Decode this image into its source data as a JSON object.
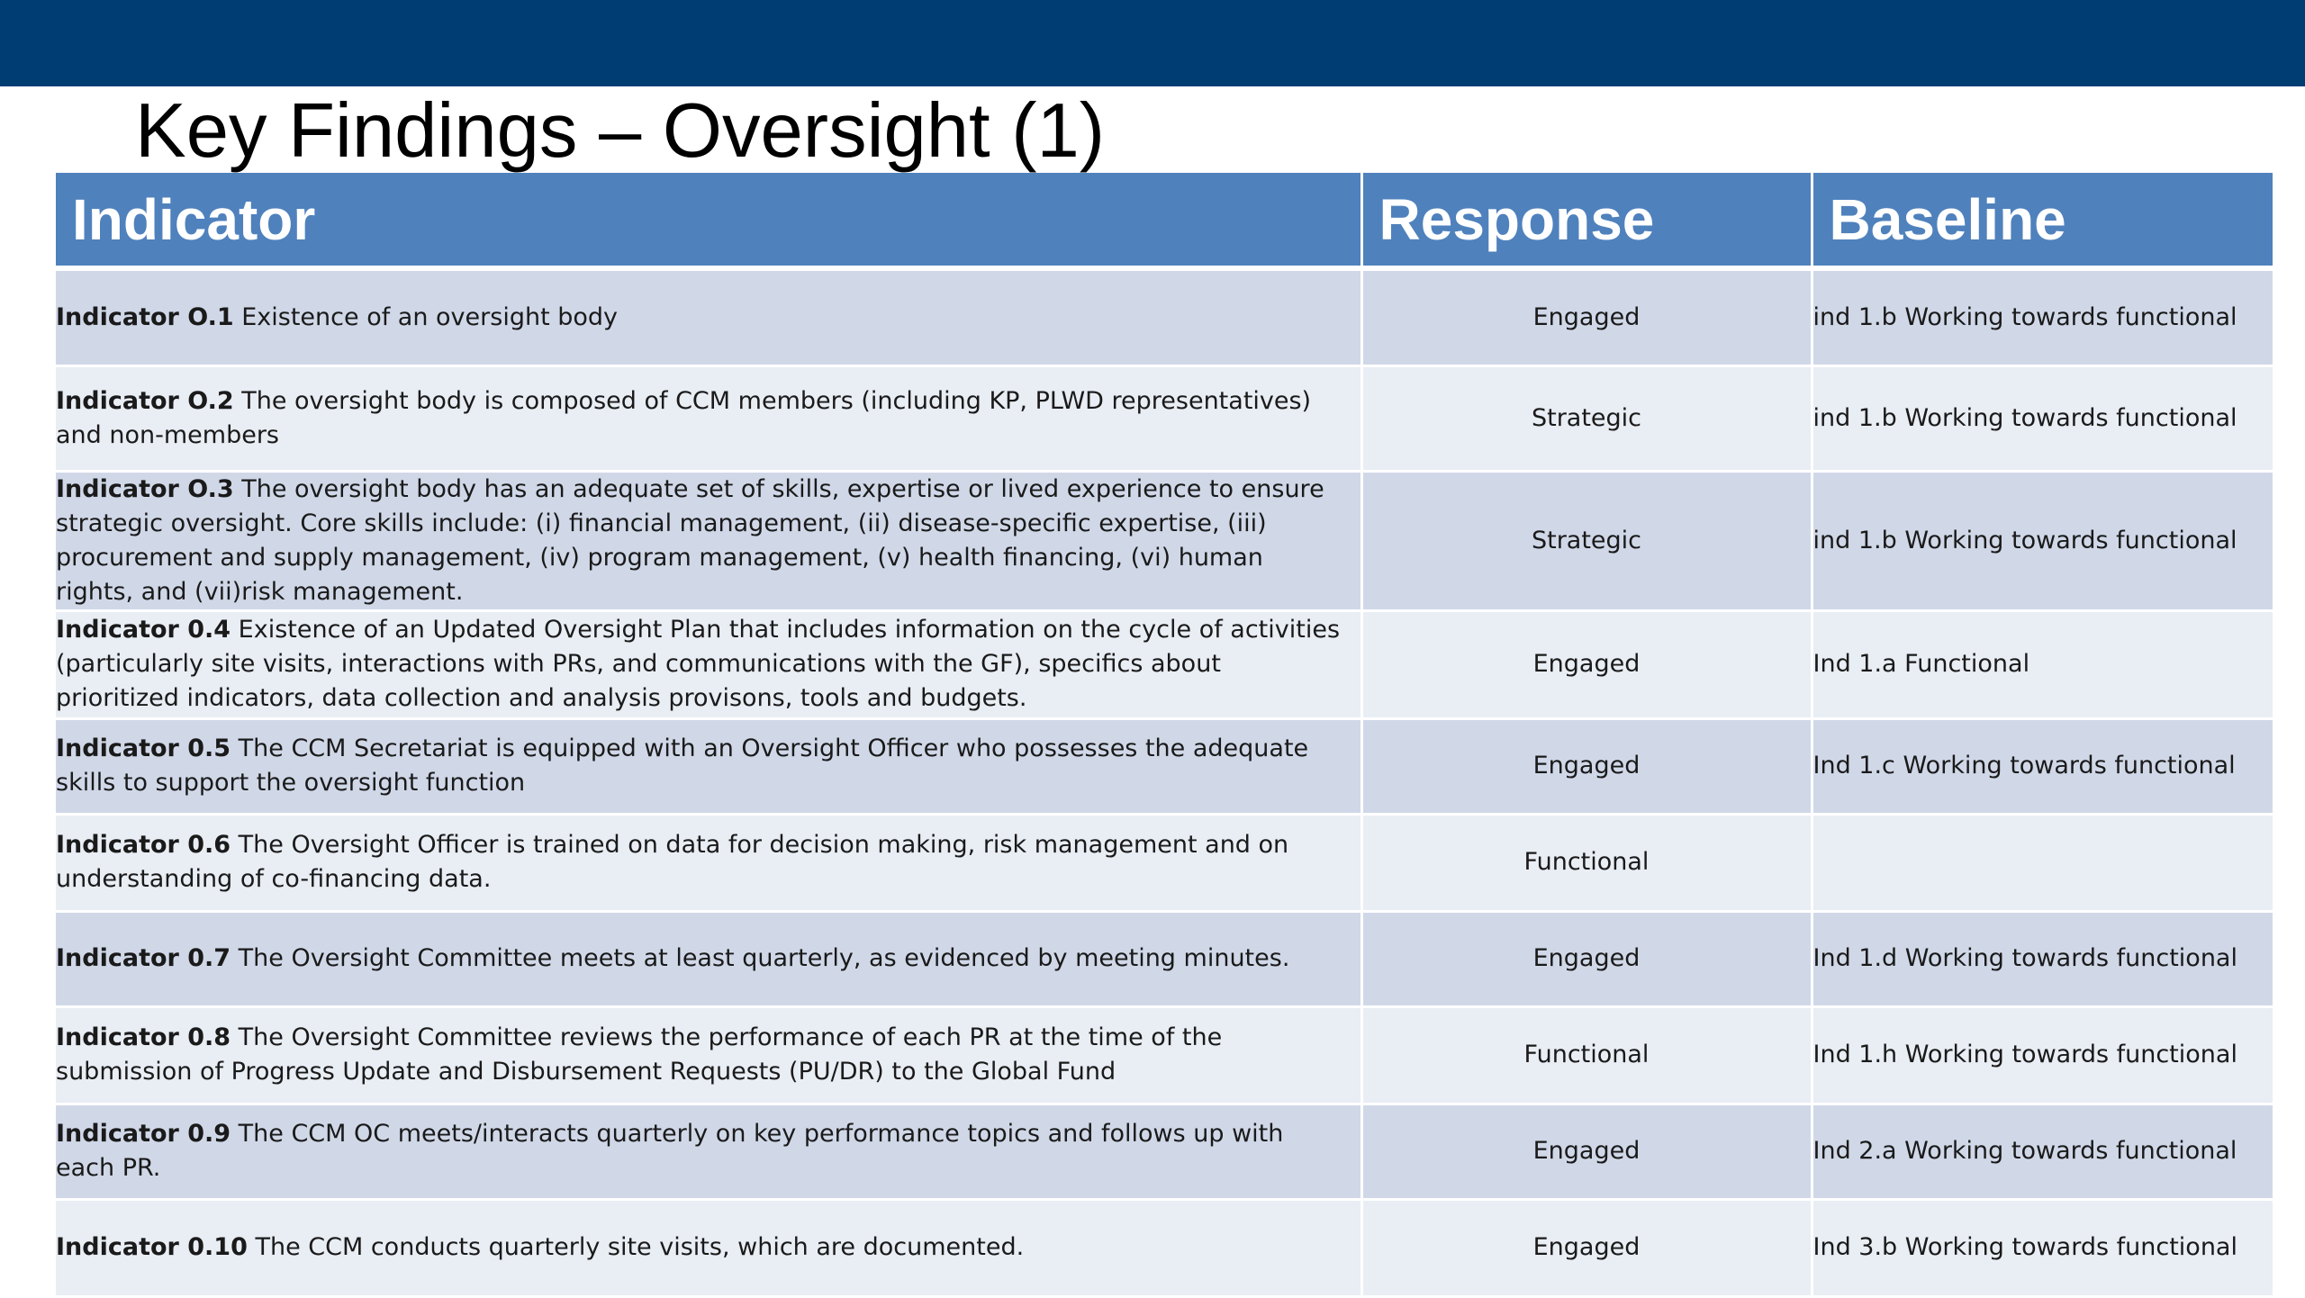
{
  "title": "Key Findings – Oversight (1)",
  "colors": {
    "top_bar": "#003d73",
    "header_fill": "#4f81bd",
    "row_dark": "#d0d8e8",
    "row_light": "#e9edf4"
  },
  "table": {
    "headers": [
      "Indicator",
      "Response",
      "Baseline"
    ],
    "rows": [
      {
        "label": "Indicator O.1",
        "text": " Existence of an oversight body",
        "response": "Engaged",
        "baseline": "ind 1.b Working towards functional"
      },
      {
        "label": "Indicator O.2",
        "text": " The oversight body is composed of CCM members (including KP, PLWD representatives) and non-members",
        "response": "Strategic",
        "baseline": "ind 1.b Working towards functional"
      },
      {
        "label": "Indicator O.3",
        "text": " The oversight body has an adequate set of skills, expertise or lived experience to ensure strategic oversight. Core skills include:  (i) financial management, (ii) disease-specific expertise, (iii) procurement and supply management, (iv) program management, (v) health financing, (vi) human rights, and (vii)risk management.",
        "response": "Strategic",
        "baseline": "ind 1.b Working towards functional"
      },
      {
        "label": "Indicator 0.4",
        "text": " Existence of an Updated Oversight Plan that includes information on the cycle of activities (particularly site visits, interactions with PRs, and communications with the GF), specifics about prioritized indicators, data collection and analysis provisons, tools and budgets.",
        "response": "Engaged",
        "baseline": "Ind 1.a Functional"
      },
      {
        "label": "Indicator 0.5",
        "text": " The CCM Secretariat is equipped with an Oversight Officer who possesses the adequate skills to support the oversight function",
        "response": "Engaged",
        "baseline": "Ind 1.c Working towards functional"
      },
      {
        "label": "Indicator 0.6",
        "text": " The Oversight Officer is trained on data for decision making, risk management and on understanding of co-financing data.",
        "response": "Functional",
        "baseline": ""
      },
      {
        "label": "Indicator 0.7",
        "text": " The Oversight Committee meets at least quarterly, as evidenced by meeting minutes.",
        "response": "Engaged",
        "baseline": "Ind 1.d Working towards functional"
      },
      {
        "label": "Indicator 0.8",
        "text": " The Oversight Committee reviews  the performance of each PR at the time of the submission of Progress Update and Disbursement Requests (PU/DR) to the Global Fund",
        "response": "Functional",
        "baseline": "Ind 1.h Working towards functional"
      },
      {
        "label": "Indicator 0.9",
        "text": " The CCM OC meets/interacts quarterly on key performance topics and follows up with each PR.",
        "response": "Engaged",
        "baseline": "Ind 2.a Working towards functional"
      },
      {
        "label": "Indicator 0.10",
        "text": " The CCM conducts quarterly site visits, which are documented.",
        "response": "Engaged",
        "baseline": "Ind 3.b Working towards functional"
      }
    ]
  }
}
